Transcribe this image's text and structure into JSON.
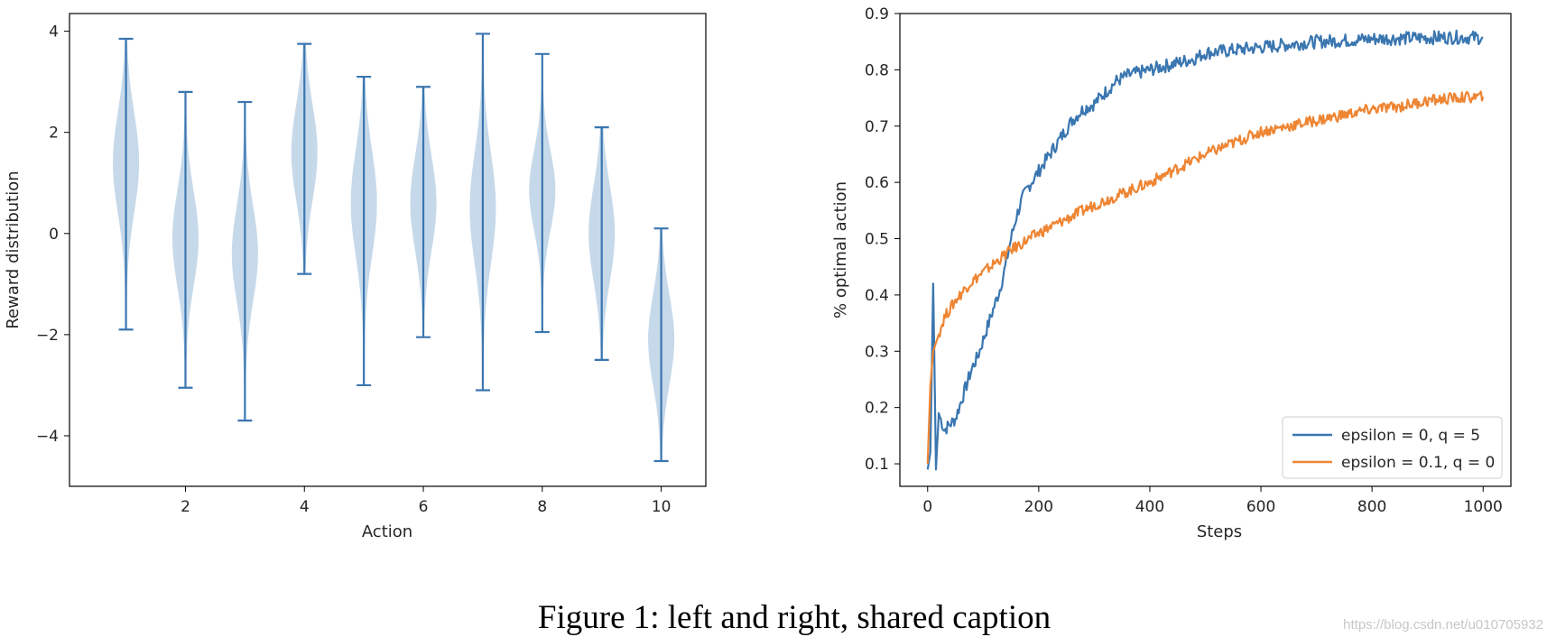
{
  "caption": "Figure 1: left and right, shared caption",
  "watermark": "https://blog.csdn.net/u010705932",
  "colors": {
    "blue": "#3a76b0",
    "violin_fill": "#c6d9ea",
    "orange": "#ee8533",
    "axis": "#000000"
  },
  "chart_data": [
    {
      "type": "violin",
      "title": "",
      "xlabel": "Action",
      "ylabel": "Reward distribution",
      "xlim": [
        0.05,
        10.75
      ],
      "ylim": [
        -5.0,
        4.35
      ],
      "xticks": [
        2,
        4,
        6,
        8,
        10
      ],
      "yticks": [
        -4,
        -2,
        0,
        2,
        4
      ],
      "ytick_labels": [
        "−4",
        "−2",
        "0",
        "2",
        "4"
      ],
      "series": [
        {
          "action": 1,
          "min": -1.9,
          "max": 3.85,
          "mode": 1.4,
          "spread": 1.0,
          "peak_width": 0.22
        },
        {
          "action": 2,
          "min": -3.05,
          "max": 2.8,
          "mode": -0.1,
          "spread": 0.95,
          "peak_width": 0.22
        },
        {
          "action": 3,
          "min": -3.7,
          "max": 2.6,
          "mode": -0.4,
          "spread": 0.95,
          "peak_width": 0.22
        },
        {
          "action": 4,
          "min": -0.8,
          "max": 3.75,
          "mode": 1.6,
          "spread": 0.95,
          "peak_width": 0.22
        },
        {
          "action": 5,
          "min": -3.0,
          "max": 3.1,
          "mode": 0.6,
          "spread": 1.05,
          "peak_width": 0.22
        },
        {
          "action": 6,
          "min": -2.05,
          "max": 2.9,
          "mode": 0.6,
          "spread": 0.95,
          "peak_width": 0.22
        },
        {
          "action": 7,
          "min": -3.1,
          "max": 3.95,
          "mode": 0.5,
          "spread": 1.1,
          "peak_width": 0.22
        },
        {
          "action": 8,
          "min": -1.95,
          "max": 3.55,
          "mode": 0.85,
          "spread": 0.8,
          "peak_width": 0.22
        },
        {
          "action": 9,
          "min": -2.5,
          "max": 2.1,
          "mode": 0.0,
          "spread": 0.95,
          "peak_width": 0.22
        },
        {
          "action": 10,
          "min": -4.5,
          "max": 0.1,
          "mode": -2.1,
          "spread": 0.9,
          "peak_width": 0.22
        }
      ]
    },
    {
      "type": "line",
      "title": "",
      "xlabel": "Steps",
      "ylabel": "% optimal action",
      "xlim": [
        -50,
        1050
      ],
      "ylim": [
        0.06,
        0.9
      ],
      "xticks": [
        0,
        200,
        400,
        600,
        800,
        1000
      ],
      "yticks": [
        0.1,
        0.2,
        0.3,
        0.4,
        0.5,
        0.6,
        0.7,
        0.8,
        0.9
      ],
      "ytick_labels": [
        "0.1",
        "0.2",
        "0.3",
        "0.4",
        "0.5",
        "0.6",
        "0.7",
        "0.8",
        "0.9"
      ],
      "legend_position": "lower-right",
      "series": [
        {
          "name": "epsilon = 0, q = 5",
          "color": "#3a76b0",
          "x": [
            0,
            5,
            10,
            15,
            20,
            30,
            40,
            50,
            60,
            70,
            80,
            90,
            100,
            110,
            120,
            130,
            140,
            150,
            160,
            170,
            180,
            200,
            220,
            240,
            260,
            280,
            300,
            320,
            340,
            360,
            380,
            400,
            420,
            440,
            460,
            480,
            500,
            550,
            600,
            650,
            700,
            750,
            800,
            850,
            900,
            950,
            1000
          ],
          "values": [
            0.09,
            0.12,
            0.42,
            0.09,
            0.19,
            0.16,
            0.17,
            0.18,
            0.21,
            0.24,
            0.27,
            0.29,
            0.32,
            0.35,
            0.38,
            0.41,
            0.45,
            0.5,
            0.54,
            0.57,
            0.59,
            0.62,
            0.65,
            0.68,
            0.71,
            0.73,
            0.74,
            0.76,
            0.78,
            0.79,
            0.795,
            0.8,
            0.805,
            0.81,
            0.815,
            0.82,
            0.83,
            0.835,
            0.84,
            0.845,
            0.85,
            0.852,
            0.855,
            0.856,
            0.857,
            0.858,
            0.857
          ]
        },
        {
          "name": "epsilon = 0.1, q = 0",
          "color": "#ee8533",
          "x": [
            0,
            5,
            10,
            20,
            30,
            50,
            75,
            100,
            150,
            200,
            250,
            300,
            350,
            400,
            450,
            500,
            550,
            600,
            650,
            700,
            750,
            800,
            850,
            900,
            950,
            1000
          ],
          "values": [
            0.1,
            0.24,
            0.3,
            0.33,
            0.36,
            0.39,
            0.42,
            0.44,
            0.48,
            0.51,
            0.535,
            0.56,
            0.58,
            0.6,
            0.625,
            0.65,
            0.67,
            0.69,
            0.7,
            0.71,
            0.72,
            0.73,
            0.735,
            0.745,
            0.75,
            0.752
          ]
        }
      ]
    }
  ]
}
